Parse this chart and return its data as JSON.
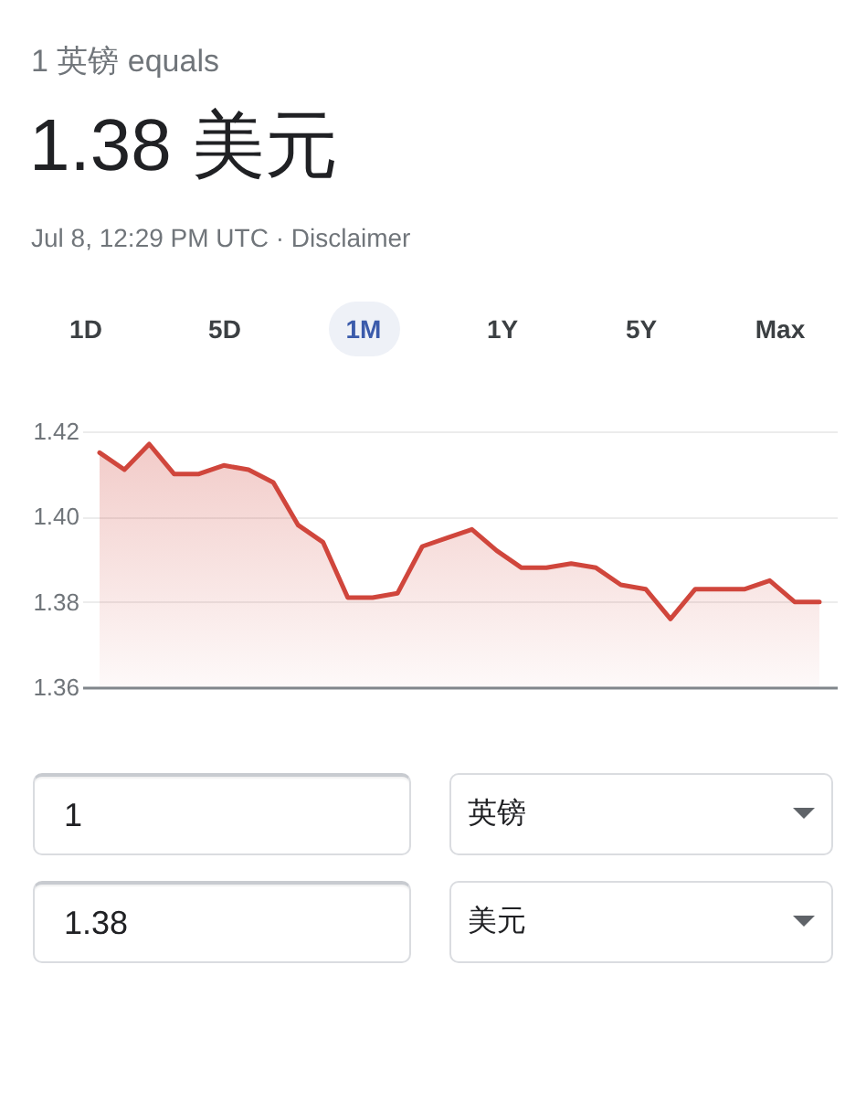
{
  "chart_data": {
    "type": "area",
    "title": "1 英镑 equals",
    "subtitle": "1.38 美元",
    "annotations": [
      "Jul 8, 12:29 PM UTC · Disclaimer",
      "1D",
      "5D",
      "1M",
      "1Y",
      "5Y",
      "Max",
      "1",
      "英镑",
      "1.38",
      "美元"
    ],
    "categories": [
      null,
      null,
      null,
      null,
      null,
      null,
      null,
      null,
      null,
      null,
      null,
      null,
      null,
      null,
      null,
      null,
      null,
      null,
      null,
      null,
      null,
      null,
      null,
      null,
      null,
      null,
      null,
      null,
      null,
      null
    ],
    "series": [
      {
        "color": "#d0463c",
        "values": [
          1.415,
          1.411,
          1.417,
          1.41,
          1.41,
          1.412,
          1.411,
          1.408,
          1.398,
          1.394,
          1.381,
          1.381,
          1.382,
          1.393,
          1.395,
          1.397,
          1.392,
          1.388,
          1.388,
          1.389,
          1.388,
          1.384,
          1.383,
          1.376,
          1.383,
          1.383,
          1.383,
          1.385,
          1.38,
          1.38
        ]
      }
    ],
    "ylim": [
      1.36,
      1.42
    ],
    "yticks": [
      1.36,
      1.38,
      {
        "value": 1.4,
        "label": "1.40"
      },
      1.42
    ],
    "grid": "y",
    "tick_labels": "y"
  }
}
